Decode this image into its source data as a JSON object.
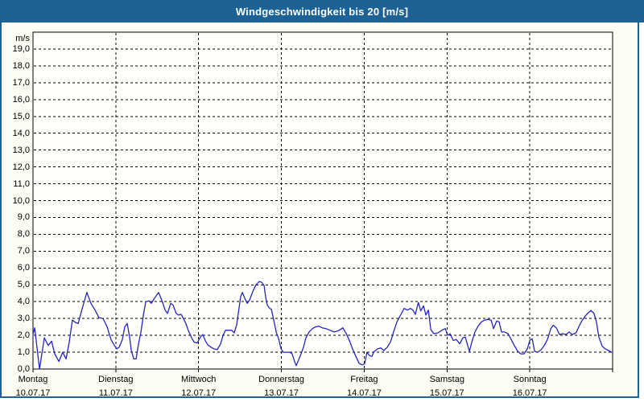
{
  "window": {
    "title": "Windgeschwindigkeit bis 20 [m/s]"
  },
  "colors": {
    "titlebar": "#1d6294",
    "frame": "#1d6294",
    "line": "#2525bd",
    "grid": "#000000",
    "panel_bg": "#fdfdf6",
    "plot_bg": "#fffffc",
    "text": "#000000"
  },
  "chart_data": {
    "type": "line",
    "title": "Windgeschwindigkeit bis 20 [m/s]",
    "unit": "m/s",
    "ylim": [
      0,
      20
    ],
    "y_tick_step": 1,
    "y_ticks": [
      "0,0",
      "1,0",
      "2,0",
      "3,0",
      "4,0",
      "5,0",
      "6,0",
      "7,0",
      "8,0",
      "9,0",
      "10,0",
      "11,0",
      "12,0",
      "13,0",
      "14,0",
      "15,0",
      "16,0",
      "17,0",
      "18,0",
      "19,0"
    ],
    "x_days": [
      {
        "name": "Montag",
        "date": "10.07.17"
      },
      {
        "name": "Dienstag",
        "date": "11.07.17"
      },
      {
        "name": "Mittwoch",
        "date": "12.07.17"
      },
      {
        "name": "Donnerstag",
        "date": "13.07.17"
      },
      {
        "name": "Freitag",
        "date": "14.07.17"
      },
      {
        "name": "Samstag",
        "date": "15.07.17"
      },
      {
        "name": "Sonntag",
        "date": "16.07.17"
      }
    ],
    "x_hours_total": 168,
    "grid": "dashed",
    "legend": "none",
    "series": [
      {
        "name": "Windgeschwindigkeit",
        "color": "#2525bd",
        "x_hours": [
          0,
          0.5,
          1.9,
          3.3,
          4.4,
          5.4,
          6.3,
          7.5,
          8.6,
          9.6,
          10.5,
          11.4,
          12.4,
          13.1,
          14,
          14.7,
          15.6,
          16.8,
          18,
          19.1,
          20.3,
          21.5,
          22.6,
          23.6,
          24.3,
          25,
          25.9,
          26.6,
          27.3,
          28,
          28.5,
          29.2,
          29.9,
          30.6,
          31.3,
          32,
          32.7,
          33.6,
          34.3,
          35.2,
          36.4,
          37.3,
          38.3,
          39,
          39.9,
          40.6,
          41.5,
          42.2,
          42.9,
          43.6,
          44.3,
          45,
          46,
          46.7,
          47.6,
          48.5,
          49.2,
          49.9,
          50.6,
          51.6,
          52.5,
          53.4,
          54.4,
          55.1,
          55.8,
          56.7,
          57.6,
          58.3,
          59,
          59.5,
          60.2,
          60.7,
          61.4,
          62.1,
          62.8,
          63.7,
          64.6,
          65.6,
          66.3,
          67,
          67.4,
          67.9,
          68.6,
          69.1,
          69.8,
          70.5,
          71.2,
          71.9,
          72.6,
          73.5,
          74.4,
          75.1,
          75.8,
          76.3,
          77,
          77.7,
          78.4,
          79.1,
          80,
          81,
          81.9,
          82.8,
          83.8,
          84.9,
          86.1,
          87.3,
          88.2,
          89.1,
          89.8,
          90.8,
          91.7,
          92.6,
          93.6,
          94.5,
          95.4,
          96.1,
          96.8,
          97.5,
          98.2,
          98.9,
          99.9,
          100.8,
          101.7,
          102.7,
          103.6,
          104.5,
          105.5,
          106.4,
          107.6,
          108.5,
          109.4,
          110.1,
          110.8,
          111.7,
          112.4,
          113.2,
          113.9,
          114.6,
          115.3,
          116.2,
          117.4,
          118.5,
          119.5,
          120.2,
          120.9,
          121.8,
          122.7,
          123.7,
          124.6,
          125.3,
          126,
          126.5,
          127.2,
          128.1,
          129,
          130,
          130.9,
          131.8,
          132.8,
          133.5,
          134.4,
          135.1,
          135.8,
          136.7,
          137.7,
          138.6,
          139.5,
          140.5,
          141.4,
          142.3,
          143.3,
          144,
          144.7,
          145.4,
          146.3,
          147.3,
          148.2,
          149.1,
          150.1,
          150.8,
          151.7,
          152.6,
          153.5,
          154.5,
          155.4,
          156.3,
          157.4,
          158.3,
          159.2,
          160.1,
          161,
          161.7,
          162.6,
          163.3,
          164,
          165,
          165.9,
          166.8,
          167.7
        ],
        "values_mps": [
          2.05,
          2.45,
          0,
          1.85,
          1.4,
          1.65,
          0.9,
          0.45,
          1,
          0.6,
          1.6,
          2.9,
          2.75,
          2.7,
          3.4,
          3.9,
          4.55,
          3.9,
          3.5,
          3.05,
          3,
          2.5,
          1.75,
          1.4,
          1.2,
          1.3,
          1.75,
          2.5,
          2.7,
          1.9,
          1.1,
          0.6,
          0.6,
          1.5,
          2.2,
          3.2,
          4,
          4.05,
          3.9,
          4.2,
          4.55,
          4.1,
          3.5,
          3.3,
          3.9,
          3.8,
          3.3,
          3.2,
          3.25,
          3,
          2.7,
          2.3,
          1.85,
          1.6,
          1.55,
          1.9,
          2.05,
          1.7,
          1.45,
          1.3,
          1.2,
          1.15,
          1.5,
          2,
          2.3,
          2.3,
          2.3,
          2.15,
          2.6,
          3.3,
          4.3,
          4.55,
          4.2,
          3.9,
          4.1,
          4.6,
          5,
          5.2,
          5.15,
          4.95,
          4.3,
          3.8,
          3.6,
          3.55,
          2.9,
          2.2,
          1.8,
          1.2,
          1,
          1,
          1,
          0.9,
          0.45,
          0.2,
          0.55,
          0.9,
          1.3,
          1.85,
          2.2,
          2.4,
          2.5,
          2.55,
          2.45,
          2.4,
          2.3,
          2.2,
          2.25,
          2.35,
          2.45,
          2.1,
          1.7,
          1.2,
          0.75,
          0.35,
          0.25,
          0.3,
          1,
          0.8,
          0.75,
          1.05,
          1.2,
          1.25,
          1.1,
          1.3,
          1.6,
          2.2,
          2.8,
          3.15,
          3.6,
          3.5,
          3.6,
          3.5,
          3.25,
          3.95,
          3.45,
          3.75,
          3.2,
          3.5,
          2.35,
          2.1,
          2.15,
          2.3,
          2.4,
          2,
          2.1,
          1.7,
          1.75,
          1.5,
          1.85,
          1.9,
          1.4,
          1.05,
          1.6,
          2.2,
          2.55,
          2.8,
          2.9,
          2.95,
          2.9,
          2.4,
          2.85,
          2.8,
          2.2,
          2.2,
          2.1,
          1.75,
          1.4,
          1.05,
          0.9,
          0.9,
          1.2,
          1.7,
          1.8,
          1.05,
          1,
          1.15,
          1.4,
          1.75,
          2.4,
          2.6,
          2.45,
          2.05,
          2.1,
          2.05,
          2.2,
          2.05,
          2.15,
          2.55,
          2.9,
          3.15,
          3.35,
          3.48,
          3.3,
          2.8,
          1.9,
          1.35,
          1.2,
          1.1,
          1
        ]
      }
    ]
  }
}
